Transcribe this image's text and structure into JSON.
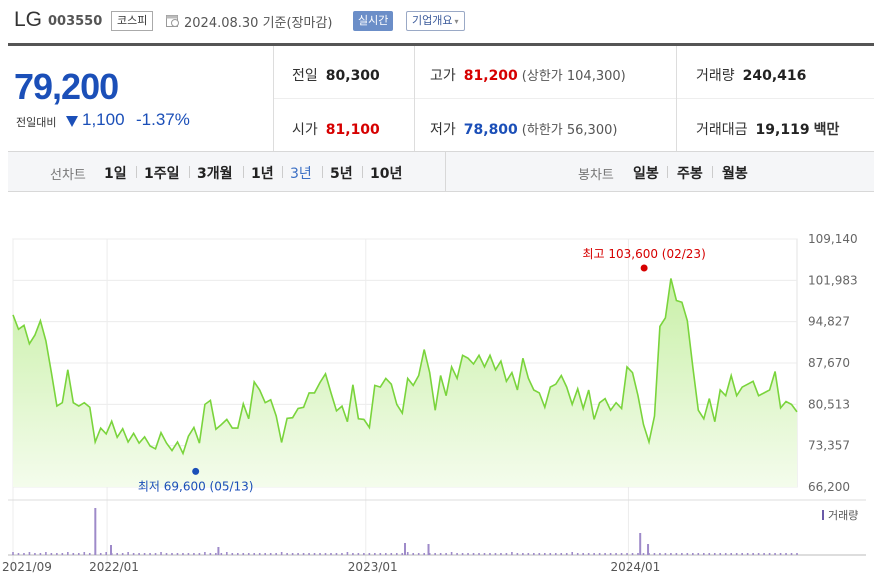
{
  "header": {
    "company_name": "LG",
    "stock_code": "003550",
    "market_badge": "코스피",
    "clock_icon": "clock-icon",
    "date_text": "2024.08.30 기준(장마감)",
    "realtime_button": "실시간",
    "company_info_button": "기업개요",
    "company_info_caret": "▾"
  },
  "quote": {
    "price": "79,200",
    "change_label": "전일대비",
    "change_direction_icon": "down-triangle-icon",
    "change_value": "1,100",
    "change_percent": "-1.37%",
    "prev_close_label": "전일",
    "prev_close": "80,300",
    "open_label": "시가",
    "open": "81,100",
    "high_label": "고가",
    "high": "81,200",
    "upper_limit": "(상한가 104,300)",
    "low_label": "저가",
    "low": "78,800",
    "lower_limit": "(하한가 56,300)",
    "volume_label": "거래량",
    "volume": "240,416",
    "amount_label": "거래대금",
    "amount": "19,119",
    "amount_unit": "백만"
  },
  "period_bar": {
    "line_chart_label": "선차트",
    "periods": [
      "1일",
      "1주일",
      "3개월",
      "1년",
      "3년",
      "5년",
      "10년"
    ],
    "selected_period": "3년",
    "candle_chart_label": "봉차트",
    "candle_periods": [
      "일봉",
      "주봉",
      "월봉"
    ]
  },
  "colors": {
    "up": "#d60000",
    "down": "#1b4fb8",
    "line": "#7ad43c",
    "area_top": "#c9f0a8",
    "volume_bar": "#9e8ac9"
  },
  "chart_data": {
    "type": "area",
    "y_ticks": [
      "109,140",
      "101,983",
      "94,827",
      "87,670",
      "80,513",
      "73,357",
      "66,200"
    ],
    "ylim": [
      66200,
      109140
    ],
    "x_ticks": [
      "2021/09",
      "2022/01",
      "2023/01",
      "2024/01"
    ],
    "max_annotation": {
      "label": "최고",
      "value": "103,600",
      "date": "(02/23)",
      "index": 0.805
    },
    "min_annotation": {
      "label": "최저",
      "value": "69,600",
      "date": "(05/13)",
      "index": 0.233
    },
    "volume_label": "거래량",
    "series": [
      {
        "values": [
          96000,
          93500,
          94200,
          91000,
          92500,
          95000,
          91500,
          86000,
          80200,
          80800,
          86500,
          80800,
          80200,
          80800,
          80000,
          74000,
          76400,
          75400,
          77600,
          74800,
          76300,
          74000,
          75500,
          73800,
          74900,
          73300,
          72800,
          75600,
          73800,
          72500,
          74000,
          72000,
          75000,
          76500,
          73800,
          80500,
          81200,
          76200,
          77000,
          77900,
          76400,
          76400,
          80600,
          78000,
          84400,
          83000,
          80800,
          81300,
          78500,
          73900,
          78100,
          78200,
          79800,
          80000,
          82500,
          82500,
          84300,
          85800,
          82500,
          79400,
          80200,
          77500,
          83900,
          78000,
          77900,
          76500,
          83800,
          83500,
          85000,
          84000,
          80500,
          79000,
          85000,
          83800,
          85500,
          90000,
          86000,
          79500,
          85500,
          82000,
          87000,
          85000,
          89000,
          88500,
          87500,
          89000,
          87000,
          89000,
          86500,
          88000,
          84500,
          86000,
          83000,
          88500,
          85000,
          83000,
          82500,
          80000,
          83500,
          84000,
          85500,
          83500,
          80500,
          83200,
          79800,
          83000,
          77900,
          80800,
          81500,
          79500,
          80800,
          79800,
          87000,
          86000,
          82000,
          77000,
          74000,
          78500,
          94000,
          95500,
          102300,
          98500,
          98200,
          95000,
          87000,
          79500,
          78000,
          81500,
          77500,
          83000,
          82000,
          85500,
          82000,
          83500,
          84000,
          84500,
          82000,
          82500,
          83000,
          86200,
          79900,
          81000,
          80500,
          79200
        ],
        "volume": [
          3,
          2,
          2,
          3,
          2,
          2,
          3,
          2,
          2,
          2,
          3,
          2,
          2,
          3,
          2,
          2,
          2,
          3,
          2,
          2,
          2,
          3,
          2,
          2,
          2,
          2,
          2,
          3,
          2,
          2,
          2,
          2,
          2,
          2,
          2,
          3,
          2,
          2,
          2,
          3,
          2,
          2,
          2,
          2,
          2,
          2,
          2,
          2,
          2,
          3,
          2,
          2,
          2,
          2,
          2,
          2,
          2,
          2,
          2,
          2,
          2,
          3,
          2,
          2,
          2,
          2,
          2,
          2,
          2,
          2,
          2,
          2,
          3,
          2,
          2,
          2,
          2,
          2,
          2,
          2,
          3,
          2,
          2,
          2,
          2,
          2,
          2,
          2,
          2,
          2,
          2,
          3,
          2,
          2,
          2,
          2,
          2,
          2,
          2,
          2,
          2,
          2,
          3,
          2,
          2,
          2,
          2,
          2,
          2,
          2,
          2,
          2,
          2,
          2,
          2,
          2,
          2,
          2,
          2,
          2,
          2,
          2,
          2,
          2,
          2,
          2,
          2,
          2,
          2,
          2,
          2,
          2,
          2,
          2,
          2,
          2,
          2,
          2,
          2,
          2,
          2,
          2,
          2,
          2
        ],
        "volume_highlights": [
          [
            0.105,
            47
          ],
          [
            0.125,
            10
          ],
          [
            0.262,
            8
          ],
          [
            0.5,
            12
          ],
          [
            0.53,
            11
          ],
          [
            0.8,
            22
          ],
          [
            0.81,
            11
          ]
        ]
      }
    ]
  }
}
